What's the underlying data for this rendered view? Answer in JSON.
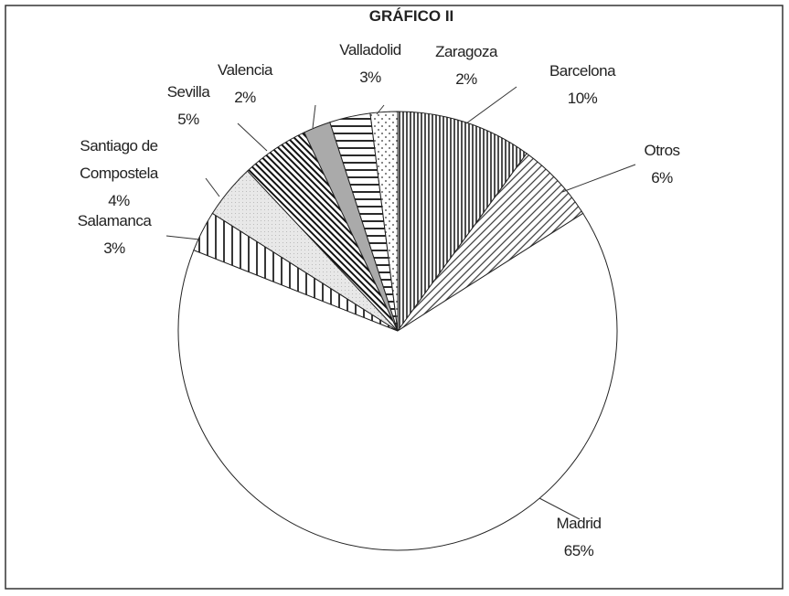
{
  "chart_data": {
    "type": "pie",
    "title": "GRÁFICO II",
    "categories": [
      "Barcelona",
      "Otros",
      "Madrid",
      "Salamanca",
      "Santiago de Compostela",
      "Sevilla",
      "Valencia",
      "Valladolid",
      "Zaragoza"
    ],
    "values": [
      10,
      6,
      65,
      3,
      4,
      5,
      2,
      3,
      2
    ],
    "value_labels": [
      "10%",
      "6%",
      "65%",
      "3%",
      "4%",
      "5%",
      "2%",
      "3%",
      "2%"
    ]
  }
}
